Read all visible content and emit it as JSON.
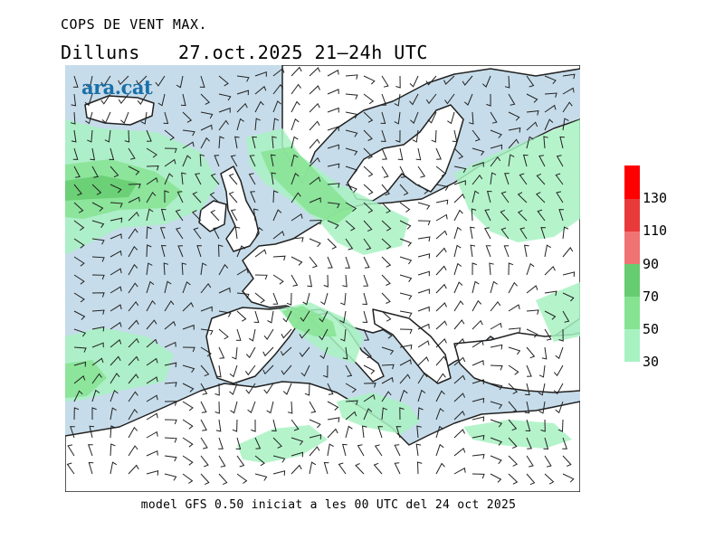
{
  "title": "COPS DE VENT MAX.",
  "day": "Dilluns",
  "date_time": "27.oct.2025 21‒24h UTC",
  "logo": "ara.cat",
  "footer": "model GFS 0.50 iniciat a les 00 UTC del 24 oct 2025",
  "legend": {
    "colors": [
      "#a8f2c2",
      "#86e392",
      "#66cc70",
      "#f07272",
      "#e83a3a",
      "#ff0000"
    ],
    "labels": [
      "30",
      "50",
      "70",
      "90",
      "110",
      "130"
    ]
  },
  "colors": {
    "sea": "#c6dcea",
    "land": "#ffffff",
    "wind_light": "#a8f2c2",
    "wind_mid": "#86e392",
    "wind_strong": "#66cc70",
    "coast": "#222222"
  }
}
